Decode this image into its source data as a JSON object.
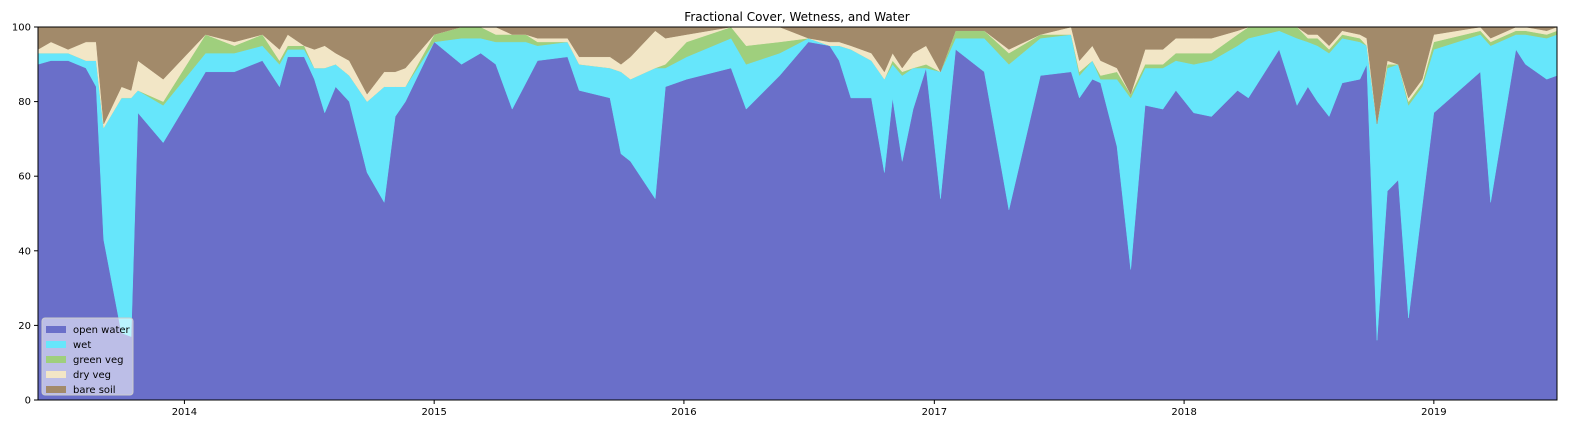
{
  "chart_data": {
    "type": "area",
    "stacked": true,
    "title": "Fractional Cover, Wetness, and Water",
    "xlabel": "",
    "ylabel": "",
    "xlim": [
      "2013-06-01",
      "2019-06-30"
    ],
    "ylim": [
      0,
      100
    ],
    "yticks": [
      0,
      20,
      40,
      60,
      80,
      100
    ],
    "xticks": [
      {
        "date": "2014-01-01",
        "label": "2014"
      },
      {
        "date": "2015-01-01",
        "label": "2015"
      },
      {
        "date": "2016-01-01",
        "label": "2016"
      },
      {
        "date": "2017-01-01",
        "label": "2017"
      },
      {
        "date": "2018-01-01",
        "label": "2018"
      },
      {
        "date": "2019-01-01",
        "label": "2019"
      }
    ],
    "grid": false,
    "legend_position": "lower-left",
    "x": [
      "2013-06-01",
      "2013-06-20",
      "2013-07-15",
      "2013-08-10",
      "2013-08-25",
      "2013-09-05",
      "2013-10-01",
      "2013-10-15",
      "2013-10-25",
      "2013-12-01",
      "2014-02-01",
      "2014-03-15",
      "2014-04-25",
      "2014-05-20",
      "2014-06-01",
      "2014-06-25",
      "2014-07-10",
      "2014-07-25",
      "2014-08-10",
      "2014-08-30",
      "2014-09-25",
      "2014-10-20",
      "2014-11-05",
      "2014-11-20",
      "2015-01-01",
      "2015-02-10",
      "2015-03-10",
      "2015-04-01",
      "2015-04-25",
      "2015-05-15",
      "2015-06-01",
      "2015-07-15",
      "2015-08-01",
      "2015-09-15",
      "2015-10-01",
      "2015-10-15",
      "2015-11-20",
      "2015-12-05",
      "2016-01-05",
      "2016-03-10",
      "2016-04-01",
      "2016-05-20",
      "2016-07-01",
      "2016-08-01",
      "2016-08-15",
      "2016-09-01",
      "2016-10-01",
      "2016-10-20",
      "2016-11-01",
      "2016-11-15",
      "2016-12-01",
      "2016-12-20",
      "2017-01-10",
      "2017-02-01",
      "2017-03-15",
      "2017-04-20",
      "2017-06-05",
      "2017-07-20",
      "2017-08-01",
      "2017-08-20",
      "2017-09-01",
      "2017-09-25",
      "2017-10-15",
      "2017-11-05",
      "2017-12-01",
      "2017-12-20",
      "2018-01-15",
      "2018-02-10",
      "2018-03-20",
      "2018-04-05",
      "2018-05-20",
      "2018-06-15",
      "2018-07-01",
      "2018-07-15",
      "2018-08-01",
      "2018-08-20",
      "2018-09-15",
      "2018-09-25",
      "2018-10-10",
      "2018-10-25",
      "2018-11-10",
      "2018-11-25",
      "2018-12-15",
      "2019-01-01",
      "2019-03-10",
      "2019-03-25",
      "2019-05-01",
      "2019-05-15",
      "2019-06-15",
      "2019-06-30"
    ],
    "series": [
      {
        "name": "open water",
        "color": "#6a6fc9",
        "values": [
          90,
          91,
          91,
          89,
          84,
          43,
          18,
          17,
          77,
          69,
          88,
          88,
          91,
          84,
          92,
          92,
          86,
          77,
          84,
          80,
          61,
          53,
          76,
          80,
          96,
          90,
          93,
          90,
          78,
          85,
          91,
          92,
          83,
          81,
          66,
          64,
          54,
          84,
          86,
          89,
          78,
          87,
          96,
          95,
          91,
          81,
          81,
          61,
          81,
          64,
          78,
          89,
          54,
          94,
          88,
          51,
          87,
          88,
          81,
          86,
          85,
          68,
          35,
          79,
          78,
          83,
          77,
          76,
          83,
          81,
          94,
          79,
          84,
          80,
          76,
          85,
          86,
          90,
          16,
          56,
          59,
          22,
          52,
          77,
          88,
          53,
          94,
          90,
          86,
          87
        ]
      },
      {
        "name": "wet",
        "color": "#66e6fb",
        "values": [
          3,
          2,
          2,
          2,
          7,
          30,
          63,
          64,
          6,
          10,
          5,
          5,
          4,
          6,
          2,
          2,
          3,
          12,
          6,
          7,
          19,
          31,
          8,
          4,
          0,
          7,
          4,
          6,
          18,
          11,
          4,
          4,
          7,
          8,
          22,
          22,
          35,
          5,
          6,
          8,
          12,
          6,
          1,
          0,
          4,
          13,
          10,
          25,
          9,
          23,
          11,
          0,
          34,
          3,
          9,
          39,
          10,
          10,
          6,
          5,
          1,
          18,
          46,
          10,
          11,
          8,
          13,
          15,
          12,
          16,
          5,
          18,
          12,
          15,
          17,
          12,
          10,
          5,
          58,
          33,
          31,
          57,
          32,
          17,
          10,
          42,
          4,
          8,
          11,
          11
        ]
      },
      {
        "name": "green veg",
        "color": "#9fcf7d",
        "values": [
          0,
          0,
          0,
          0,
          0,
          0,
          0,
          0,
          0,
          1,
          5,
          2,
          3,
          1,
          1,
          1,
          0,
          0,
          0,
          0,
          0,
          0,
          0,
          0,
          2,
          3,
          3,
          2,
          2,
          2,
          1,
          0,
          0,
          0,
          0,
          0,
          0,
          1,
          4,
          3,
          5,
          3,
          0,
          0,
          0,
          0,
          0,
          0,
          1,
          1,
          0,
          1,
          0,
          2,
          2,
          3,
          1,
          0,
          1,
          0,
          1,
          2,
          1,
          1,
          1,
          2,
          3,
          2,
          3,
          3,
          1,
          3,
          1,
          2,
          1,
          1,
          1,
          0,
          0,
          1,
          0,
          1,
          1,
          2,
          1,
          1,
          1,
          1,
          1,
          1
        ]
      },
      {
        "name": "dry veg",
        "color": "#f2e6c6",
        "values": [
          1,
          3,
          1,
          5,
          5,
          1,
          3,
          2,
          8,
          6,
          0,
          1,
          0,
          3,
          3,
          0,
          5,
          6,
          3,
          4,
          2,
          4,
          4,
          5,
          0,
          0,
          0,
          2,
          0,
          0,
          1,
          1,
          2,
          3,
          2,
          6,
          10,
          7,
          2,
          1,
          5,
          4,
          0,
          1,
          1,
          1,
          2,
          2,
          2,
          1,
          4,
          5,
          0,
          0,
          0,
          1,
          0,
          2,
          3,
          4,
          4,
          1,
          0,
          4,
          4,
          4,
          4,
          4,
          1,
          1,
          0,
          0,
          1,
          1,
          1,
          1,
          1,
          2,
          0,
          1,
          0,
          1,
          1,
          2,
          1,
          1,
          1,
          1,
          1,
          1
        ]
      },
      {
        "name": "bare soil",
        "color": "#a28a6a",
        "values": [
          6,
          4,
          6,
          4,
          4,
          26,
          16,
          17,
          9,
          14,
          2,
          4,
          2,
          6,
          2,
          5,
          6,
          5,
          7,
          9,
          18,
          12,
          12,
          11,
          2,
          0,
          0,
          0,
          2,
          2,
          3,
          3,
          8,
          8,
          10,
          8,
          1,
          3,
          2,
          0,
          0,
          0,
          3,
          4,
          4,
          5,
          7,
          12,
          7,
          11,
          7,
          5,
          12,
          1,
          1,
          6,
          2,
          0,
          9,
          5,
          9,
          11,
          18,
          6,
          6,
          3,
          3,
          3,
          1,
          0,
          0,
          0,
          2,
          2,
          5,
          1,
          2,
          3,
          26,
          9,
          10,
          19,
          14,
          2,
          0,
          3,
          0,
          0,
          1,
          0
        ]
      }
    ]
  }
}
